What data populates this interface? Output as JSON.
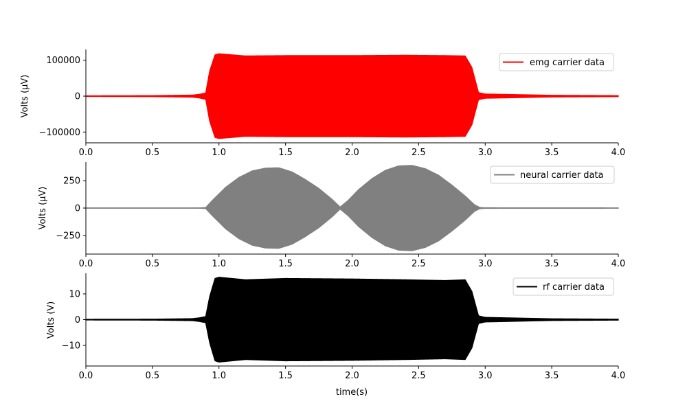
{
  "chart_data": [
    {
      "type": "line",
      "ylabel": "Volts (μV)",
      "xlim": [
        0.0,
        4.0
      ],
      "ylim": [
        -130000,
        130000
      ],
      "xticks": [
        0.0,
        0.5,
        1.0,
        1.5,
        2.0,
        2.5,
        3.0,
        3.5,
        4.0
      ],
      "xtick_labels": [
        "0.0",
        "0.5",
        "1.0",
        "1.5",
        "2.0",
        "2.5",
        "3.0",
        "3.5",
        "4.0"
      ],
      "yticks": [
        100000,
        0,
        -100000
      ],
      "ytick_labels": [
        "100000",
        "0",
        "−100000"
      ],
      "legend_position": "upper right",
      "series": [
        {
          "name": "emg carrier data",
          "color": "#ff0000",
          "envelope_x": [
            0.0,
            0.5,
            0.8,
            0.85,
            0.9,
            0.93,
            0.97,
            1.0,
            1.2,
            1.5,
            2.0,
            2.4,
            2.7,
            2.85,
            2.9,
            2.95,
            3.0,
            3.5,
            4.0
          ],
          "envelope_amplitude": [
            1000,
            1500,
            3000,
            5000,
            9000,
            70000,
            115000,
            118000,
            112000,
            113000,
            113000,
            114000,
            113000,
            112000,
            80000,
            10000,
            6000,
            2500,
            1500
          ]
        }
      ]
    },
    {
      "type": "line",
      "ylabel": "Volts (μV)",
      "xlim": [
        0.0,
        4.0
      ],
      "ylim": [
        -420,
        420
      ],
      "xticks": [
        0.0,
        0.5,
        1.0,
        1.5,
        2.0,
        2.5,
        3.0,
        3.5,
        4.0
      ],
      "xtick_labels": [
        "0.0",
        "0.5",
        "1.0",
        "1.5",
        "2.0",
        "2.5",
        "3.0",
        "3.5",
        "4.0"
      ],
      "yticks": [
        250,
        0,
        -250
      ],
      "ytick_labels": [
        "250",
        "0",
        "−250"
      ],
      "legend_position": "upper right",
      "series": [
        {
          "name": "neural carrier data",
          "color": "#808080",
          "envelope_x": [
            0.0,
            0.85,
            0.9,
            0.95,
            1.05,
            1.15,
            1.25,
            1.35,
            1.45,
            1.55,
            1.65,
            1.75,
            1.85,
            1.91,
            1.97,
            2.05,
            2.15,
            2.25,
            2.35,
            2.45,
            2.55,
            2.65,
            2.75,
            2.85,
            2.92,
            2.96,
            3.0,
            4.0
          ],
          "envelope_amplitude": [
            2,
            2,
            5,
            70,
            190,
            280,
            340,
            365,
            368,
            330,
            260,
            180,
            80,
            10,
            70,
            170,
            270,
            345,
            385,
            390,
            360,
            300,
            210,
            110,
            30,
            6,
            3,
            2
          ]
        }
      ]
    },
    {
      "type": "line",
      "ylabel": "Volts (V)",
      "xlabel": "time(s)",
      "xlim": [
        0.0,
        4.0
      ],
      "ylim": [
        -18,
        18
      ],
      "xticks": [
        0.0,
        0.5,
        1.0,
        1.5,
        2.0,
        2.5,
        3.0,
        3.5,
        4.0
      ],
      "xtick_labels": [
        "0.0",
        "0.5",
        "1.0",
        "1.5",
        "2.0",
        "2.5",
        "3.0",
        "3.5",
        "4.0"
      ],
      "yticks": [
        10,
        0,
        -10
      ],
      "ytick_labels": [
        "10",
        "0",
        "−10"
      ],
      "legend_position": "upper right",
      "series": [
        {
          "name": "rf carrier data",
          "color": "#000000",
          "envelope_x": [
            0.0,
            0.5,
            0.8,
            0.85,
            0.9,
            0.93,
            0.97,
            1.0,
            1.2,
            1.5,
            2.0,
            2.4,
            2.7,
            2.85,
            2.9,
            2.95,
            3.0,
            3.5,
            4.0
          ],
          "envelope_amplitude": [
            0.15,
            0.2,
            0.4,
            0.7,
            1.2,
            9.0,
            16.0,
            16.5,
            15.5,
            16.0,
            15.8,
            15.5,
            15.2,
            15.5,
            11.0,
            1.5,
            0.9,
            0.35,
            0.2
          ]
        }
      ]
    }
  ]
}
